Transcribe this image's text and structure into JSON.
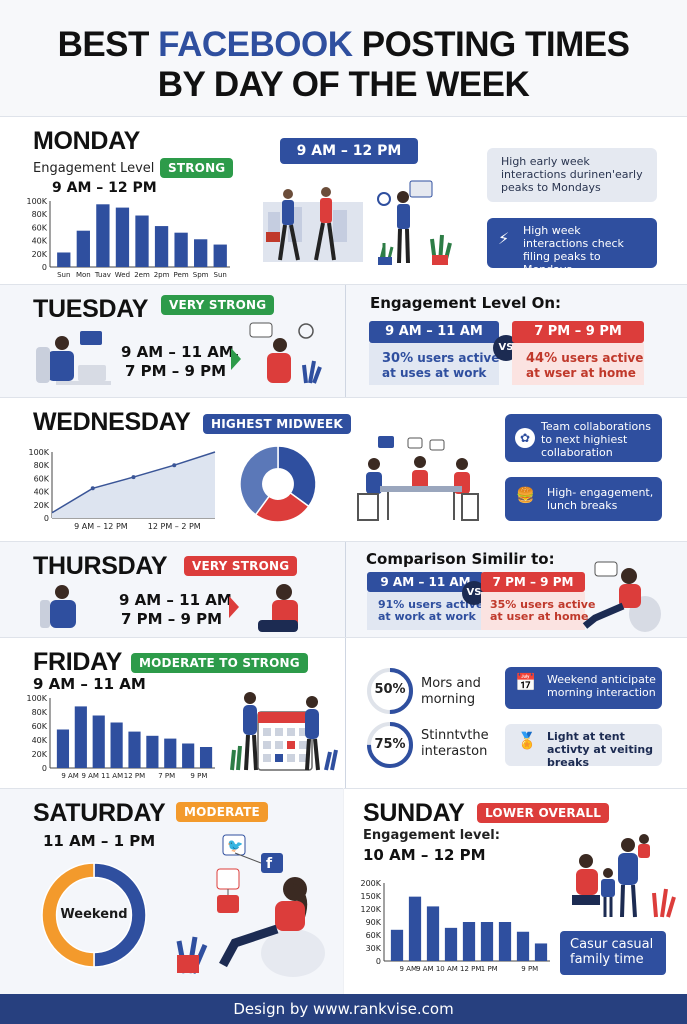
{
  "title": {
    "line1a": "BEST ",
    "line1b": "FACEBOOK",
    "line1c": " POSTING TIMES",
    "line2": "BY DAY OF THE WEEK"
  },
  "colors": {
    "blue": "#2f4f9f",
    "red": "#dc3d3b",
    "green": "#2d9b4a",
    "orange": "#f39a2c"
  },
  "monday": {
    "day": "MONDAY",
    "engagement_label": "Engagement Level",
    "badge": "STRONG",
    "time": "9 AM – 12 PM",
    "banner": "9 AM – 12 PM",
    "card1": "High early week interactions durinen'early peaks to Mondays",
    "card2": "High week interactions check filing peaks to Mondays",
    "chart": {
      "type": "bar",
      "categories": [
        "Sun",
        "Mon",
        "Tuav",
        "Wed",
        "2em",
        "2pm",
        "Pem",
        "Spm",
        "Sun"
      ],
      "values": [
        22,
        55,
        95,
        90,
        78,
        62,
        52,
        42,
        34
      ],
      "ylim": [
        0,
        100
      ],
      "yticks": [
        "0",
        "20K",
        "40K",
        "60K",
        "80K",
        "100K"
      ]
    }
  },
  "tuesday": {
    "day": "TUESDAY",
    "badge": "VERY STRONG",
    "time1": "9 AM – 11 AM,",
    "time2": "7 PM – 9 PM",
    "heading": "Engagement Level On:",
    "left_pill": "9 AM – 11 AM",
    "left_pct": "30%",
    "left_text1": " users active",
    "left_text2": "at uses at work",
    "vs": "VS",
    "right_pill": "7 PM – 9 PM",
    "right_pct": "44%",
    "right_text1": " users active",
    "right_text2": "at wser at home"
  },
  "wednesday": {
    "day": "WEDNESDAY",
    "badge": "HIGHEST MIDWEEK",
    "chart": {
      "type": "area",
      "x": [
        "",
        "9 AM – 12 PM",
        "",
        "12 PM – 2 PM",
        ""
      ],
      "values": [
        8,
        45,
        62,
        80,
        100
      ],
      "ylim": [
        0,
        100
      ],
      "yticks": [
        "0",
        "20K",
        "40K",
        "60K",
        "80K",
        "100K"
      ],
      "xlabels": [
        "9 AM – 12 PM",
        "12 PM – 2 PM"
      ]
    },
    "donut": {
      "type": "pie",
      "values": [
        35,
        25,
        40
      ]
    },
    "card1": "Team collaborations to next highiest collaboration",
    "card2": "High- engagement, lunch breaks"
  },
  "thursday": {
    "day": "THURSDAY",
    "badge": "VERY STRONG",
    "time1": "9 AM – 11 AM",
    "time2": "7 PM – 9 PM",
    "heading": "Comparison Similir to:",
    "left_pill": "9 AM – 11 AM",
    "left_pct": "91%",
    "left_text1": " users active",
    "left_text2": "at work at work",
    "vs": "VS",
    "right_pill": "7 PM – 9 PM",
    "right_pct": "35%",
    "right_text1": " users active",
    "right_text2": "at user at home"
  },
  "friday": {
    "day": "FRIDAY",
    "badge": "MODERATE TO STRONG",
    "time": "9 AM – 11 AM",
    "chart": {
      "type": "bar",
      "values": [
        55,
        88,
        75,
        65,
        52,
        46,
        42,
        35,
        30
      ],
      "ylim": [
        0,
        100
      ],
      "yticks": [
        "0",
        "20K",
        "40K",
        "60K",
        "80K",
        "100K"
      ],
      "xlabels": [
        "9 AM",
        "9 AM 11 AM",
        "12 PM",
        "7 PM",
        "9 PM"
      ]
    },
    "stat1": {
      "pct": "50%",
      "value": 0.5,
      "text1": "Mors and",
      "text2": "morning"
    },
    "stat2": {
      "pct": "75%",
      "value": 0.75,
      "text1": "Stinntvthe",
      "text2": "interaston"
    },
    "card1": "Weekend anticipate morning interaction",
    "card2": "Light at tent activty at veiting breaks"
  },
  "saturday": {
    "day": "SATURDAY",
    "badge": "MODERATE",
    "time": "11 AM – 1 PM",
    "donut": {
      "type": "pie",
      "label": "Weekend",
      "values": [
        50,
        50
      ]
    }
  },
  "sunday": {
    "day": "SUNDAY",
    "badge": "LOWER OVERALL",
    "label": "Engagement level:",
    "time": "10 AM – 12 PM",
    "chart": {
      "type": "bar",
      "values": [
        80,
        165,
        140,
        85,
        100,
        100,
        100,
        75,
        45
      ],
      "ylim": [
        0,
        200
      ],
      "yticks": [
        "0",
        "30K",
        "60K",
        "90K",
        "120K",
        "150K",
        "200K"
      ],
      "xlabels": [
        "9 AM",
        "9 AM 10 AM 12 PM",
        "1 PM",
        "9 PM"
      ]
    },
    "caption": "Casur casual family time"
  },
  "footer": "Design by www.rankvise.com"
}
